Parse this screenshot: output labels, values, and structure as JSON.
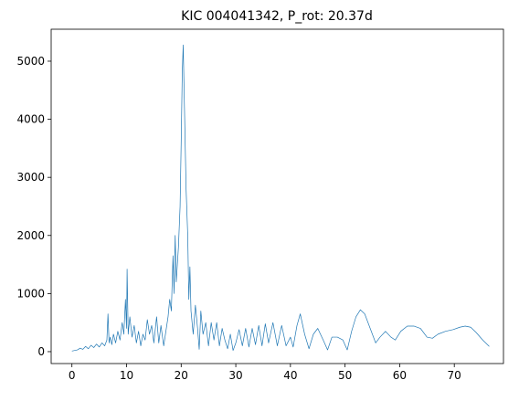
{
  "chart_data": {
    "type": "line",
    "title": "KIC 004041342, P_rot: 20.37d",
    "x": [
      0,
      0.5,
      1,
      1.5,
      2,
      2.5,
      3,
      3.5,
      4,
      4.5,
      5,
      5.5,
      6,
      6.4,
      6.6,
      6.8,
      7,
      7.3,
      7.6,
      8,
      8.4,
      8.8,
      9.2,
      9.5,
      9.8,
      10,
      10.1,
      10.3,
      10.6,
      11,
      11.4,
      11.8,
      12.2,
      12.6,
      13,
      13.4,
      13.8,
      14.2,
      14.6,
      15,
      15.5,
      15.9,
      16.3,
      16.8,
      17.2,
      17.6,
      17.9,
      18.2,
      18.5,
      18.7,
      18.9,
      19.1,
      19.3,
      19.5,
      19.8,
      20,
      20.2,
      20.37,
      20.6,
      20.9,
      21.2,
      21.4,
      21.6,
      21.8,
      22.2,
      22.6,
      23,
      23.3,
      23.6,
      24,
      24.5,
      25,
      25.5,
      26,
      26.5,
      27,
      27.5,
      28,
      28.5,
      29,
      29.5,
      30,
      30.6,
      31.2,
      31.8,
      32.4,
      33,
      33.6,
      34.2,
      34.8,
      35.4,
      36,
      36.8,
      37.6,
      38.4,
      39.2,
      40,
      40.5,
      41.2,
      41.8,
      42.6,
      43.4,
      44.2,
      45,
      46,
      46.8,
      47.6,
      48.6,
      49.6,
      50.4,
      51.2,
      52,
      52.8,
      53.6,
      54.6,
      55.6,
      56.4,
      57.4,
      58.4,
      59.2,
      60.2,
      61.4,
      62.6,
      63.8,
      65,
      66,
      67,
      68.4,
      69.8,
      71,
      72,
      73,
      74,
      75.2,
      76.4
    ],
    "series": [
      {
        "color": "#1f77b4",
        "values": [
          10,
          20,
          30,
          60,
          40,
          90,
          50,
          110,
          70,
          130,
          80,
          150,
          100,
          200,
          650,
          150,
          250,
          120,
          300,
          150,
          350,
          200,
          500,
          300,
          900,
          400,
          1420,
          300,
          600,
          250,
          450,
          150,
          350,
          100,
          300,
          200,
          550,
          300,
          450,
          150,
          600,
          150,
          450,
          100,
          350,
          600,
          900,
          700,
          1650,
          1000,
          2000,
          1200,
          1500,
          1800,
          2500,
          3600,
          4800,
          5280,
          4200,
          2800,
          2000,
          900,
          1460,
          700,
          300,
          800,
          400,
          40,
          700,
          300,
          500,
          100,
          500,
          200,
          500,
          100,
          400,
          200,
          50,
          300,
          20,
          150,
          380,
          100,
          400,
          80,
          400,
          120,
          450,
          100,
          480,
          150,
          500,
          100,
          450,
          100,
          250,
          80,
          450,
          650,
          300,
          50,
          300,
          400,
          200,
          30,
          250,
          250,
          200,
          30,
          350,
          600,
          720,
          650,
          400,
          150,
          250,
          350,
          250,
          200,
          350,
          440,
          440,
          400,
          250,
          230,
          300,
          350,
          380,
          420,
          440,
          420,
          330,
          200,
          90
        ]
      }
    ],
    "xlim": [
      -3.8,
      79.0
    ],
    "ylim": [
      -205,
      5550
    ],
    "xticks": [
      0,
      10,
      20,
      30,
      40,
      50,
      60,
      70
    ],
    "yticks": [
      0,
      1000,
      2000,
      3000,
      4000,
      5000
    ]
  }
}
